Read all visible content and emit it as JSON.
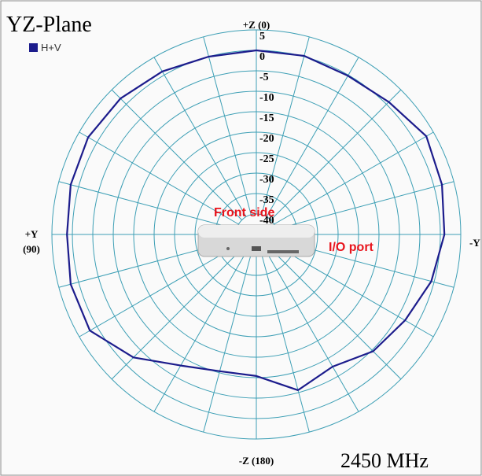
{
  "chart_data": {
    "type": "polar_line",
    "title": "YZ-Plane",
    "subtitle": "2450 MHz",
    "angle_labels": {
      "top": "+Z (0)",
      "left": [
        "+Y",
        "(90)"
      ],
      "right": "-Y",
      "bottom": "-Z (180)"
    },
    "annotations": [
      "Front side",
      "I/O port"
    ],
    "theta": [
      0,
      15,
      30,
      45,
      60,
      75,
      90,
      105,
      120,
      135,
      150,
      165,
      180,
      195,
      210,
      225,
      240,
      255,
      270,
      285,
      300,
      315,
      330,
      345,
      360
    ],
    "series": [
      {
        "name": "H+V",
        "color": "#1c1c8c",
        "values": [
          0,
          0,
          1,
          2,
          2.5,
          2,
          1.3,
          2,
          2,
          -2.5,
          -8,
          -10.4,
          -10.4,
          -5.6,
          -7.7,
          -4.6,
          -3,
          -0.7,
          1,
          2,
          3,
          0.8,
          -0.2,
          0.2,
          0
        ]
      }
    ],
    "rlim": [
      -45,
      5
    ],
    "rticks": [
      5,
      0,
      -5,
      -10,
      -15,
      -20,
      -25,
      -30,
      -35,
      -40
    ],
    "thetaticks": [
      0,
      15,
      30,
      45,
      60,
      75,
      90,
      105,
      120,
      135,
      150,
      165,
      180,
      195,
      210,
      225,
      240,
      255,
      270,
      285,
      300,
      315,
      330,
      345
    ],
    "grid_color": "#3d9fb5"
  }
}
